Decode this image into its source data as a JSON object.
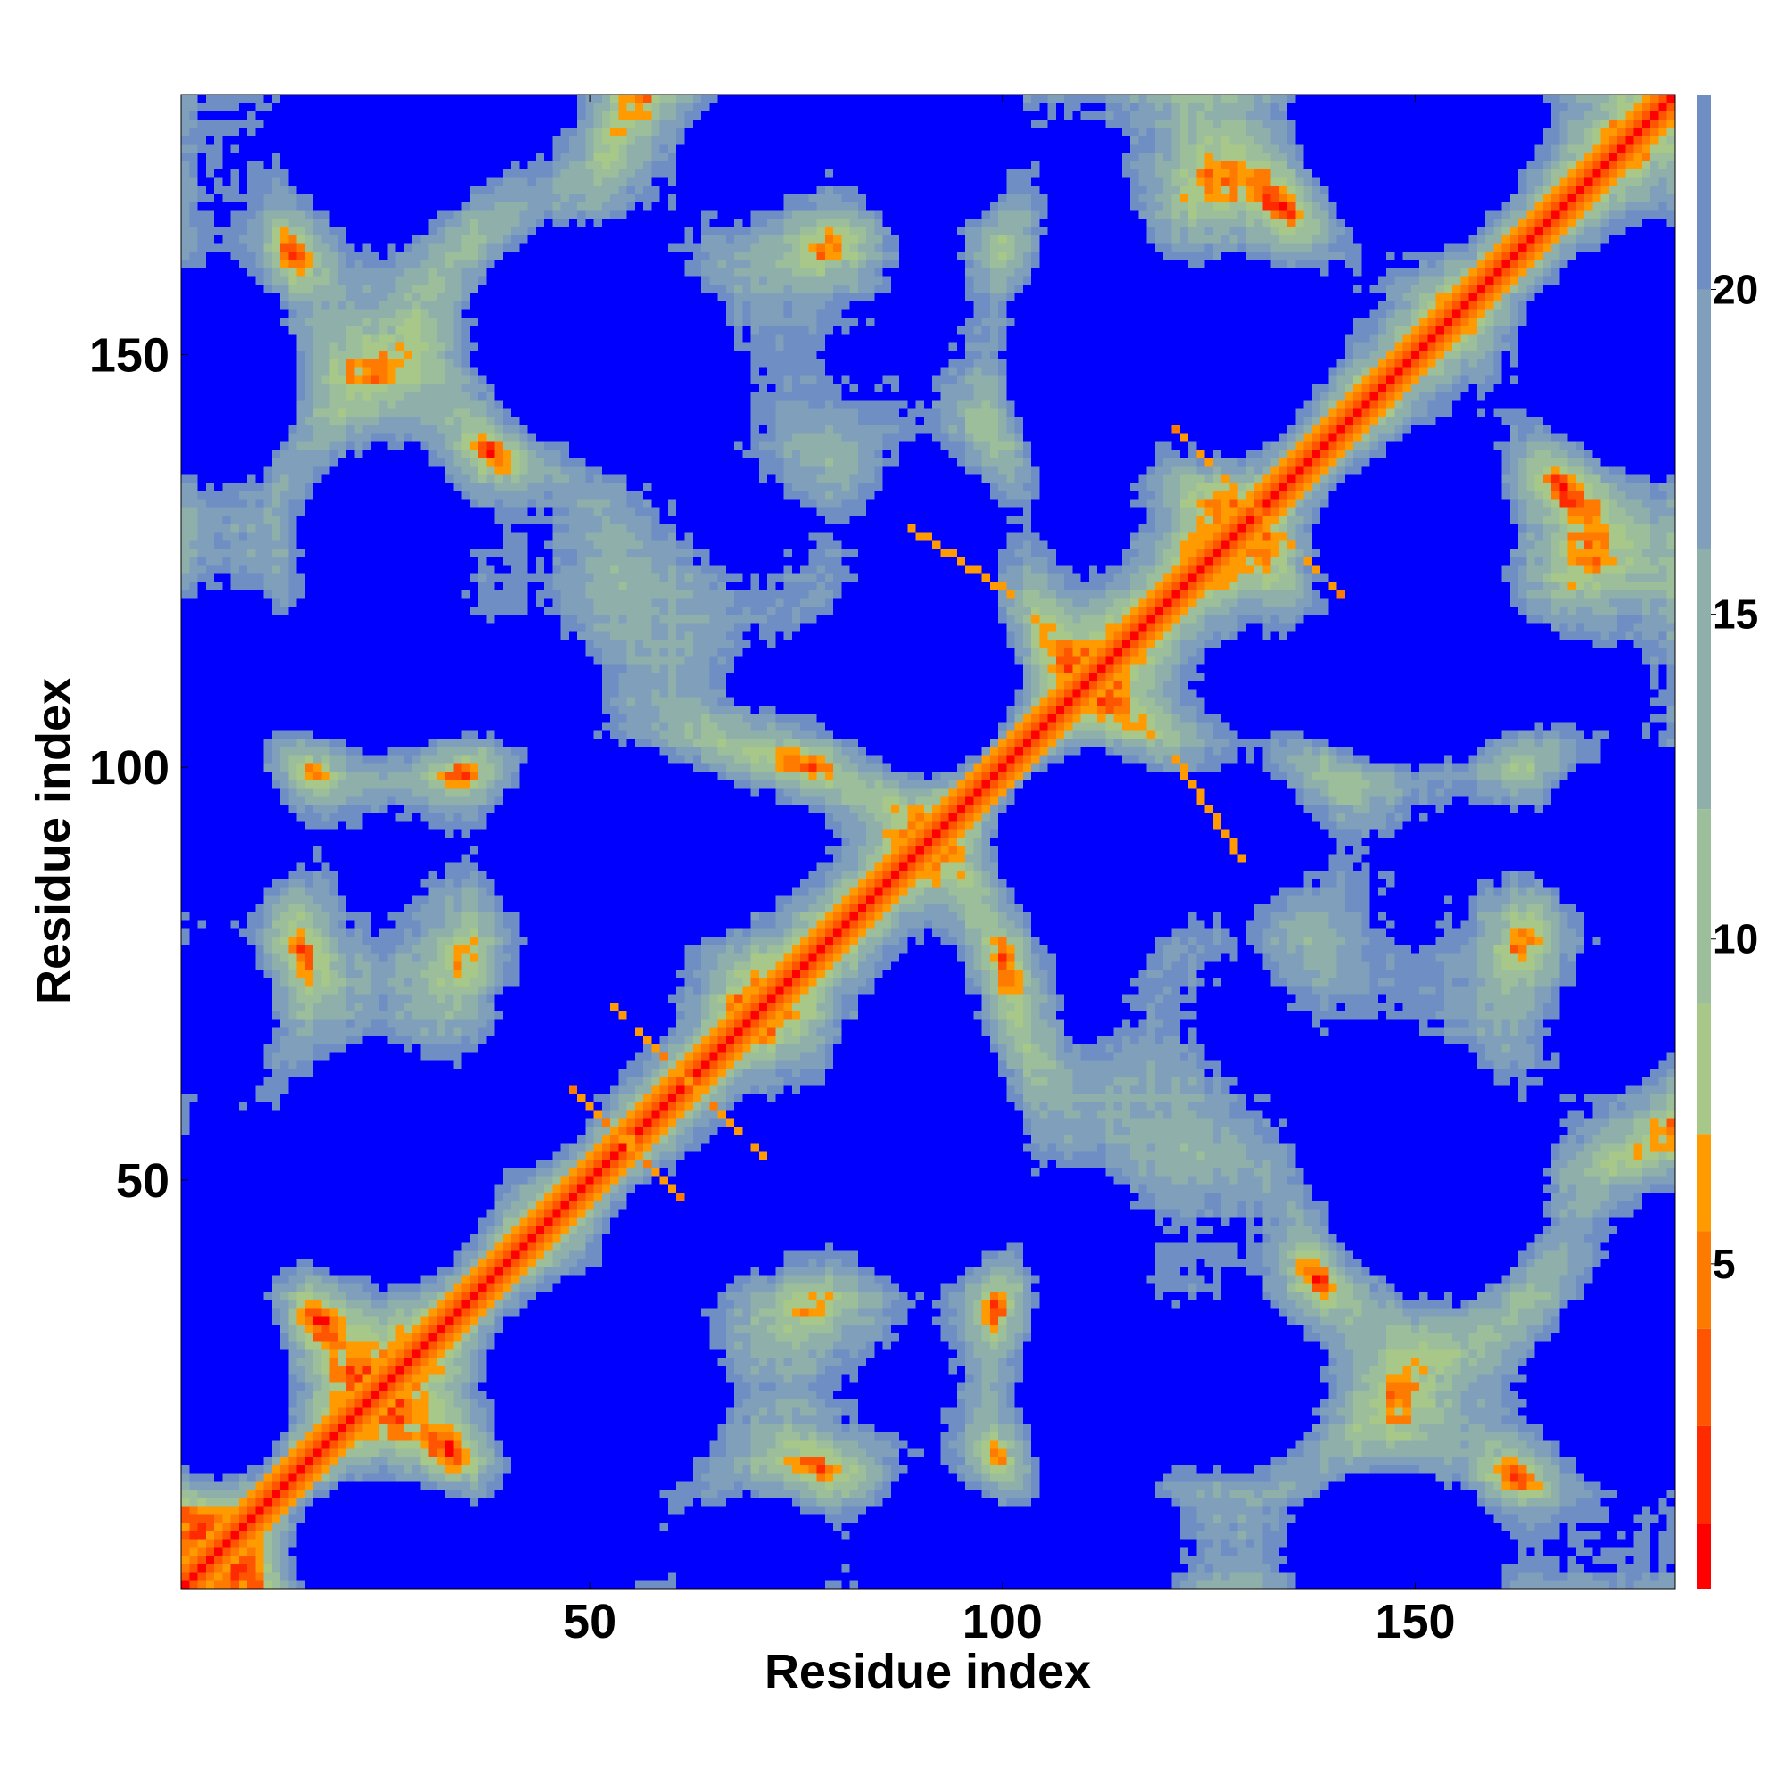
{
  "chart_data": {
    "type": "heatmap",
    "title": "",
    "xlabel": "Residue index",
    "ylabel": "Residue index",
    "xlim": [
      1,
      181
    ],
    "ylim": [
      1,
      181
    ],
    "n_residues": 181,
    "x_ticks": [
      50,
      100,
      150
    ],
    "y_ticks": [
      50,
      100,
      150
    ],
    "colorbar": {
      "range": [
        0,
        23
      ],
      "ticks": [
        5,
        10,
        15,
        20
      ],
      "bands": [
        {
          "max": 1.0,
          "color": "#ff0000"
        },
        {
          "max": 2.5,
          "color": "#ff2a00"
        },
        {
          "max": 4.0,
          "color": "#ff5500"
        },
        {
          "max": 5.5,
          "color": "#ff7a00"
        },
        {
          "max": 7.0,
          "color": "#ff9a00"
        },
        {
          "max": 9.0,
          "color": "#a8c88a"
        },
        {
          "max": 12.0,
          "color": "#9cbe9a"
        },
        {
          "max": 16.0,
          "color": "#8fb0aa"
        },
        {
          "max": 20.0,
          "color": "#7f9fba"
        },
        {
          "max": 23.0,
          "color": "#6f8ec4"
        }
      ],
      "far_color": "#0000ff"
    },
    "description": "Symmetric residue-residue distance map: close contacts (red/orange) along the main diagonal and along anti-diagonal beta-sheet-like stripes; mid distances (green/grey-blue) form blob clusters; distances above the colorbar maximum are blue."
  }
}
